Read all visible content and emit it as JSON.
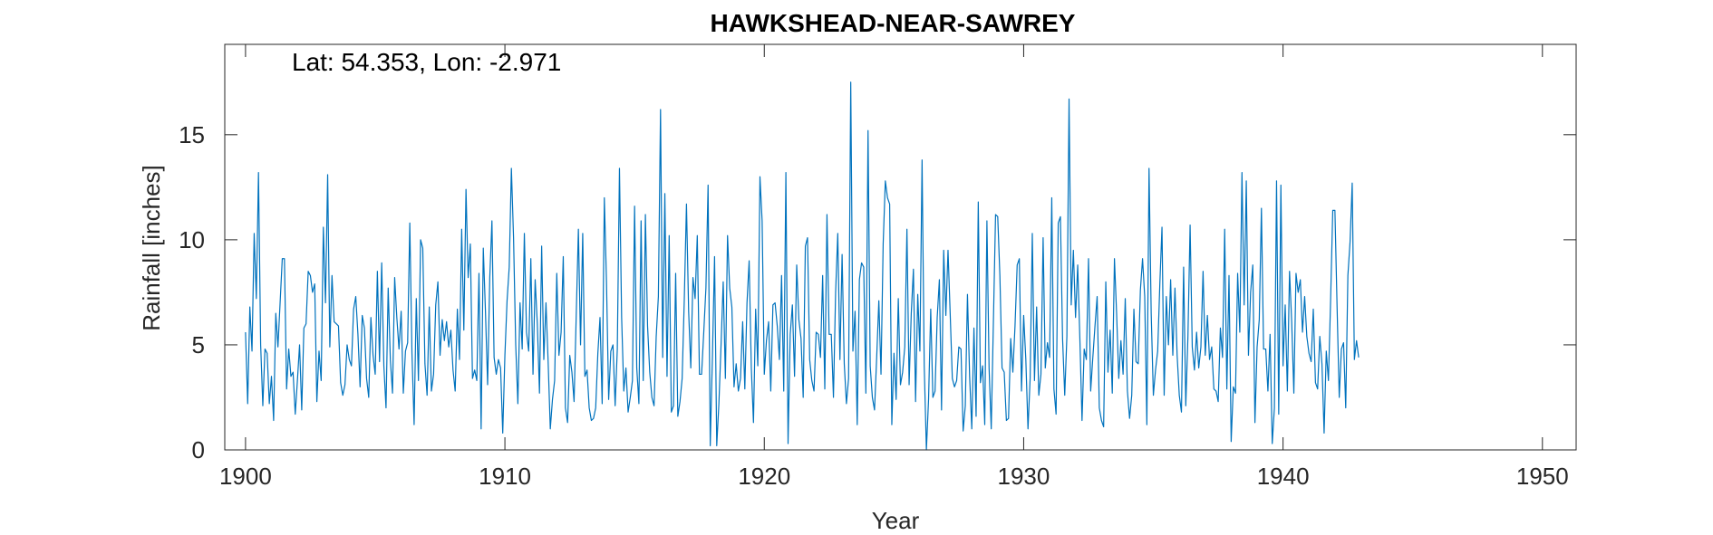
{
  "chart_data": {
    "type": "line",
    "title": "HAWKSHEAD-NEAR-SAWREY",
    "annotation": "Lat: 54.353, Lon: -2.971",
    "xlabel": "Year",
    "ylabel": "Rainfall [inches]",
    "xlim": [
      1899.2,
      1951.3
    ],
    "ylim": [
      0,
      19.3
    ],
    "xticks": [
      1900,
      1910,
      1920,
      1930,
      1940,
      1950
    ],
    "xtick_labels": [
      "1900",
      "1910",
      "1920",
      "1930",
      "1940",
      "1950"
    ],
    "yticks": [
      0,
      5,
      10,
      15
    ],
    "ytick_labels": [
      "0",
      "5",
      "10",
      "15"
    ],
    "grid": false,
    "box": true,
    "series_color": "#0072BD",
    "series": [
      {
        "x_start": 1900.0,
        "x_step": 0.0833333,
        "values": [
          5.6,
          2.2,
          6.8,
          4.7,
          10.3,
          7.2,
          13.2,
          5.0,
          2.1,
          4.8,
          4.6,
          2.2,
          3.5,
          1.4,
          6.5,
          4.9,
          7.0,
          9.1,
          9.1,
          2.9,
          4.8,
          3.5,
          3.7,
          1.7,
          3.3,
          5.0,
          1.9,
          5.8,
          6.0,
          8.5,
          8.3,
          7.5,
          7.9,
          2.3,
          4.7,
          3.3,
          10.6,
          7.0,
          13.1,
          4.9,
          8.3,
          6.1,
          6.0,
          5.9,
          3.2,
          2.6,
          3.1,
          5.0,
          4.3,
          4.0,
          6.7,
          7.3,
          5.5,
          3.0,
          6.4,
          5.8,
          3.4,
          2.5,
          6.3,
          4.5,
          3.6,
          8.5,
          4.2,
          8.9,
          4.0,
          2.0,
          7.7,
          4.3,
          2.7,
          8.2,
          6.3,
          4.8,
          6.6,
          2.7,
          4.7,
          5.1,
          10.8,
          4.6,
          1.2,
          7.2,
          3.3,
          10.0,
          9.6,
          4.1,
          2.6,
          6.8,
          2.8,
          3.6,
          6.9,
          8.0,
          4.5,
          6.2,
          5.2,
          6.1,
          4.9,
          5.7,
          3.8,
          2.8,
          6.7,
          4.3,
          10.5,
          5.7,
          12.4,
          8.2,
          9.8,
          3.4,
          3.8,
          3.3,
          8.4,
          1.0,
          9.6,
          6.6,
          3.1,
          8.2,
          10.9,
          4.4,
          3.6,
          4.3,
          3.9,
          0.8,
          4.5,
          7.1,
          8.7,
          13.4,
          10.1,
          5.0,
          2.2,
          7.0,
          4.8,
          10.3,
          5.6,
          4.7,
          9.1,
          3.6,
          8.1,
          6.0,
          2.7,
          9.7,
          4.3,
          7.0,
          4.2,
          1.0,
          2.4,
          3.3,
          8.4,
          4.5,
          5.6,
          9.2,
          2.0,
          1.3,
          4.5,
          3.7,
          2.3,
          6.4,
          10.5,
          5.0,
          10.3,
          3.5,
          3.8,
          2.0,
          1.4,
          1.5,
          2.0,
          4.6,
          6.3,
          2.2,
          12.0,
          8.0,
          2.4,
          4.7,
          5.0,
          2.1,
          4.8,
          13.4,
          6.3,
          2.8,
          3.9,
          1.8,
          2.5,
          3.3,
          11.6,
          3.9,
          2.2,
          10.9,
          3.3,
          11.2,
          5.9,
          3.7,
          2.5,
          2.1,
          5.4,
          7.3,
          16.2,
          4.4,
          12.2,
          3.5,
          10.2,
          1.8,
          2.1,
          8.4,
          1.6,
          2.3,
          3.4,
          7.2,
          11.7,
          6.6,
          3.9,
          8.2,
          7.2,
          10.2,
          3.6,
          3.6,
          5.6,
          7.7,
          12.6,
          0.2,
          4.4,
          9.2,
          0.2,
          2.2,
          5.0,
          8.0,
          3.4,
          10.2,
          7.7,
          6.8,
          3.0,
          4.1,
          2.8,
          3.4,
          6.1,
          2.9,
          7.0,
          9.0,
          3.9,
          1.3,
          6.7,
          4.0,
          13.0,
          10.9,
          3.6,
          5.2,
          6.1,
          2.8,
          6.9,
          7.0,
          5.9,
          4.3,
          8.3,
          2.8,
          13.2,
          0.3,
          5.5,
          6.9,
          3.5,
          8.8,
          6.2,
          5.3,
          2.5,
          9.7,
          10.1,
          4.3,
          3.3,
          2.8,
          5.6,
          5.5,
          4.4,
          8.3,
          2.9,
          11.2,
          5.5,
          5.5,
          2.5,
          7.5,
          10.3,
          4.3,
          9.3,
          4.1,
          2.2,
          3.4,
          17.5,
          4.7,
          6.6,
          1.2,
          8.1,
          8.9,
          8.7,
          2.7,
          15.2,
          4.0,
          2.5,
          1.9,
          4.4,
          7.1,
          3.6,
          9.8,
          12.8,
          12.0,
          11.7,
          1.2,
          4.6,
          2.4,
          7.2,
          3.1,
          3.7,
          4.9,
          10.5,
          3.1,
          6.5,
          8.6,
          2.3,
          7.4,
          4.7,
          13.8,
          4.0,
          0.0,
          2.4,
          6.7,
          2.5,
          2.8,
          6.3,
          8.1,
          1.9,
          9.5,
          6.4,
          9.5,
          6.5,
          3.4,
          3.0,
          3.3,
          4.9,
          4.8,
          0.9,
          2.1,
          7.4,
          3.5,
          1.0,
          5.8,
          1.6,
          11.8,
          3.2,
          4.0,
          1.2,
          10.9,
          3.9,
          1.0,
          6.1,
          11.2,
          11.1,
          8.3,
          3.9,
          3.7,
          1.4,
          1.5,
          5.3,
          3.7,
          5.9,
          8.8,
          9.1,
          2.8,
          6.4,
          4.3,
          1.0,
          3.4,
          10.3,
          3.3,
          6.8,
          2.6,
          3.6,
          10.1,
          3.9,
          5.1,
          4.4,
          12.0,
          2.9,
          1.7,
          10.8,
          11.1,
          5.3,
          2.6,
          5.4,
          16.7,
          6.9,
          9.5,
          6.3,
          8.8,
          5.3,
          1.4,
          4.8,
          4.3,
          9.1,
          2.8,
          4.4,
          5.9,
          7.3,
          2.0,
          1.4,
          1.1,
          8.0,
          3.7,
          5.7,
          2.7,
          9.1,
          6.5,
          3.4,
          5.2,
          3.6,
          7.2,
          2.8,
          1.5,
          2.6,
          6.7,
          4.2,
          4.1,
          7.6,
          9.1,
          7.3,
          1.2,
          13.4,
          6.5,
          2.6,
          3.8,
          4.7,
          7.9,
          10.6,
          2.6,
          7.3,
          5.0,
          8.1,
          4.5,
          7.7,
          4.5,
          2.6,
          1.8,
          8.7,
          2.1,
          5.4,
          10.7,
          4.9,
          3.8,
          5.6,
          3.9,
          4.9,
          8.5,
          4.5,
          6.4,
          4.3,
          4.9,
          2.9,
          2.8,
          2.3,
          5.8,
          4.4,
          10.5,
          2.9,
          8.3,
          0.4,
          3.0,
          2.7,
          8.4,
          5.6,
          13.2,
          6.9,
          12.8,
          4.5,
          7.5,
          8.8,
          1.3,
          4.9,
          6.2,
          11.5,
          4.8,
          4.8,
          2.8,
          5.5,
          0.3,
          2.0,
          12.8,
          1.7,
          12.6,
          4.0,
          6.9,
          2.8,
          8.5,
          6.1,
          2.7,
          8.4,
          7.5,
          8.1,
          5.6,
          7.3,
          5.4,
          4.6,
          4.2,
          6.7,
          3.2,
          2.9,
          5.4,
          4.1,
          0.8,
          4.7,
          3.3,
          7.1,
          11.4,
          11.4,
          6.8,
          2.5,
          4.8,
          5.1,
          2.0,
          8.3,
          9.9,
          12.7,
          4.3,
          5.2,
          4.4
        ]
      }
    ]
  }
}
